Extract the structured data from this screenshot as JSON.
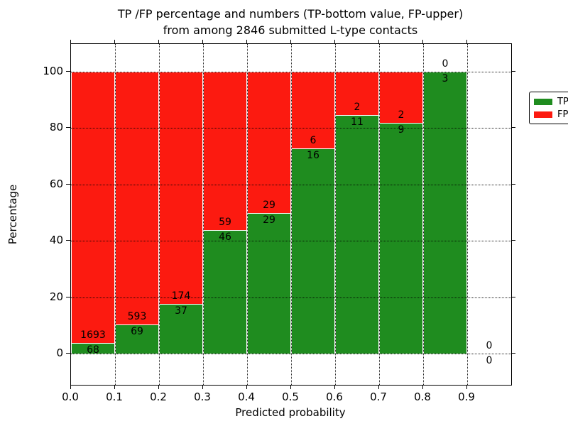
{
  "title": {
    "line1": "TP /FP percentage and numbers (TP-bottom value, FP-upper)",
    "line2": "from among 2846 submitted L-type contacts"
  },
  "axes": {
    "xlabel": "Predicted probability",
    "ylabel": "Percentage",
    "xtick_labels": [
      "0.0",
      "0.1",
      "0.2",
      "0.3",
      "0.4",
      "0.5",
      "0.6",
      "0.7",
      "0.8",
      "0.9"
    ],
    "ytick_labels": [
      "0",
      "20",
      "40",
      "60",
      "80",
      "100"
    ],
    "yticks": [
      0,
      20,
      40,
      60,
      80,
      100
    ],
    "grid": "dotted, both axes"
  },
  "legend": {
    "position": "upper right",
    "items": [
      {
        "label": "TP",
        "color": "#1f8c1f"
      },
      {
        "label": "FP",
        "color": "#fc1a10"
      }
    ]
  },
  "colors": {
    "tp_green": "#1f8c1f",
    "fp_red": "#fc1a10",
    "bar_edge": "#ffffff",
    "axis": "#000000",
    "background": "#ffffff"
  },
  "chart_data": {
    "type": "bar",
    "stacked": true,
    "normalized": "each bin stacks to 100%",
    "title": "TP /FP percentage and numbers (TP-bottom value, FP-upper) from among 2846 submitted L-type contacts",
    "xlabel": "Predicted probability",
    "ylabel": "Percentage",
    "xlim": [
      0.0,
      1.0
    ],
    "ylim": [
      -11,
      110
    ],
    "bin_width": 0.1,
    "bin_starts": [
      0.0,
      0.1,
      0.2,
      0.3,
      0.4,
      0.5,
      0.6,
      0.7,
      0.8,
      0.9
    ],
    "series": [
      {
        "name": "TP",
        "color": "#1f8c1f",
        "counts": [
          68,
          69,
          37,
          46,
          29,
          16,
          11,
          9,
          3,
          0
        ]
      },
      {
        "name": "FP",
        "color": "#fc1a10",
        "counts": [
          1693,
          593,
          174,
          59,
          29,
          6,
          2,
          2,
          0,
          0
        ]
      }
    ],
    "tp_percent_of_bin": [
      3.86,
      10.42,
      17.54,
      43.81,
      50.0,
      72.73,
      84.62,
      81.82,
      100.0,
      null
    ],
    "total_contacts": 2846
  }
}
